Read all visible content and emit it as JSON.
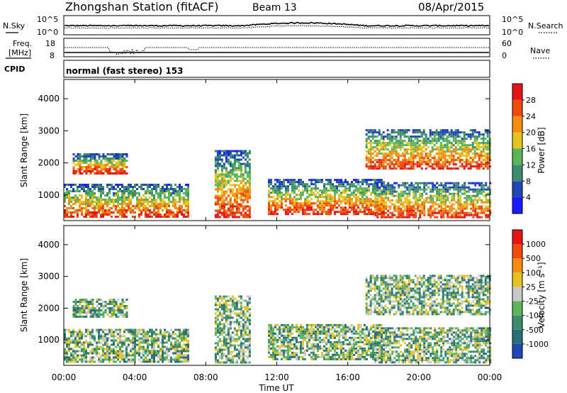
{
  "header": {
    "station": "Zhongshan Station (fitACF)",
    "beam": "Beam 13",
    "date": "08/Apr/2015"
  },
  "top_panel": {
    "left_label": "N.Sky",
    "left_ticks": [
      "10^5",
      "10^0"
    ],
    "right_ticks": [
      "10^5",
      "10^0"
    ],
    "right_label": "N.Search"
  },
  "freq_panel": {
    "left_label_1": "Freq.",
    "left_label_2": "[MHz]",
    "left_ticks": [
      "18",
      "8"
    ],
    "right_ticks": [
      "60",
      "0"
    ],
    "right_label": "Nave"
  },
  "cpid_panel": {
    "left_label": "CPID",
    "mode_text": "normal (fast stereo) 153"
  },
  "chart_data": [
    {
      "type": "heatmap",
      "ylabel": "Slant Range [km]",
      "ylim": [
        200,
        4600
      ],
      "yticks": [
        "1000",
        "2000",
        "3000",
        "4000"
      ],
      "colorbar": {
        "label": "Power [dB]",
        "ticks": [
          "4",
          "8",
          "12",
          "16",
          "20",
          "24",
          "28"
        ],
        "range": [
          0,
          32
        ],
        "colors": [
          "#1a1aff",
          "#1f46b4",
          "#3c8c6e",
          "#5ab45a",
          "#e6c31e",
          "#f58c14",
          "#f04b0a",
          "#e61414"
        ]
      },
      "echo_regions": [
        {
          "start": 0.0,
          "end": 7.0,
          "from": 300,
          "to": 1350
        },
        {
          "start": 0.5,
          "end": 3.5,
          "from": 1700,
          "to": 2300
        },
        {
          "start": 8.5,
          "end": 10.5,
          "from": 300,
          "to": 2400
        },
        {
          "start": 11.5,
          "end": 18.0,
          "from": 400,
          "to": 1500
        },
        {
          "start": 17.5,
          "end": 24.0,
          "from": 300,
          "to": 1400
        },
        {
          "start": 17.0,
          "end": 24.0,
          "from": 1800,
          "to": 3050
        }
      ]
    },
    {
      "type": "heatmap",
      "ylabel": "Slant Range [km]",
      "ylim": [
        200,
        4600
      ],
      "yticks": [
        "1000",
        "2000",
        "3000",
        "4000"
      ],
      "colorbar": {
        "label": "Velocity [m s⁻¹]",
        "ticks": [
          "1000",
          "500",
          "100",
          "25",
          "-25",
          "-100",
          "-500",
          "-1000"
        ],
        "colors": [
          "#1f46b4",
          "#2a6e7a",
          "#3c8c6e",
          "#5ab45a",
          "#c8c8c8",
          "#e6c31e",
          "#f58c14",
          "#f04b0a",
          "#e61414"
        ]
      },
      "echo_regions": [
        {
          "start": 0.0,
          "end": 7.0,
          "from": 300,
          "to": 1350
        },
        {
          "start": 0.5,
          "end": 3.5,
          "from": 1700,
          "to": 2300
        },
        {
          "start": 8.5,
          "end": 10.5,
          "from": 300,
          "to": 2400
        },
        {
          "start": 11.5,
          "end": 18.0,
          "from": 400,
          "to": 1500
        },
        {
          "start": 17.5,
          "end": 24.0,
          "from": 300,
          "to": 1400
        },
        {
          "start": 17.0,
          "end": 24.0,
          "from": 1800,
          "to": 3050
        }
      ]
    }
  ],
  "x_axis": {
    "label": "Time UT",
    "ticks": [
      "00:00",
      "04:00",
      "08:00",
      "12:00",
      "16:00",
      "20:00",
      "00:00"
    ],
    "range_hours": [
      0,
      24
    ]
  }
}
